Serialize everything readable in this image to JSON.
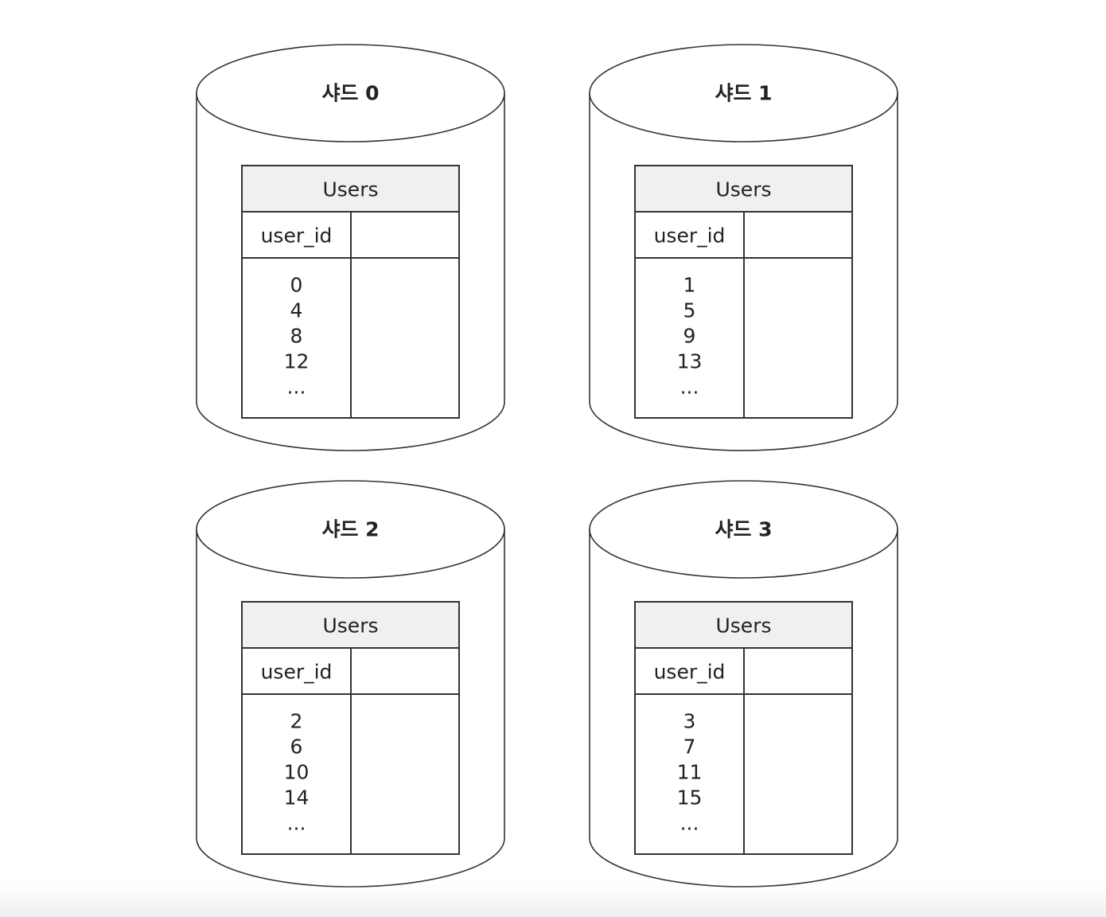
{
  "shards": [
    {
      "name": "샤드 0",
      "table": {
        "title": "Users",
        "columns": [
          "user_id",
          ""
        ],
        "user_ids": [
          "0",
          "4",
          "8",
          "12",
          "..."
        ]
      }
    },
    {
      "name": "샤드 1",
      "table": {
        "title": "Users",
        "columns": [
          "user_id",
          ""
        ],
        "user_ids": [
          "1",
          "5",
          "9",
          "13",
          "..."
        ]
      }
    },
    {
      "name": "샤드 2",
      "table": {
        "title": "Users",
        "columns": [
          "user_id",
          ""
        ],
        "user_ids": [
          "2",
          "6",
          "10",
          "14",
          "..."
        ]
      }
    },
    {
      "name": "샤드 3",
      "table": {
        "title": "Users",
        "columns": [
          "user_id",
          ""
        ],
        "user_ids": [
          "3",
          "7",
          "11",
          "15",
          "..."
        ]
      }
    }
  ],
  "colors": {
    "stroke": "#333333",
    "header_fill": "#f0f0f0",
    "background": "#ffffff"
  }
}
